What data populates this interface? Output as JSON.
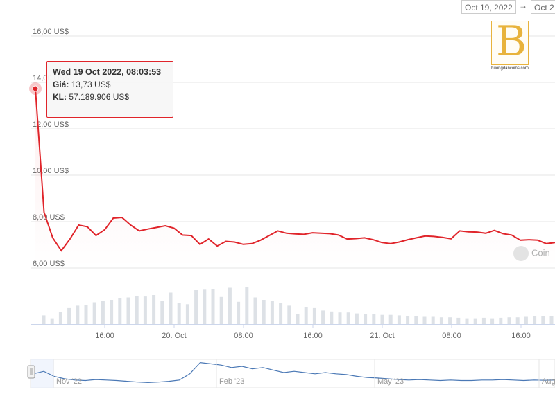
{
  "range": {
    "from": "Oct 19, 2022",
    "arrow": "→",
    "to": "Oct 2"
  },
  "logo": {
    "letter": "B",
    "site": "huongdancoins.com",
    "brand_color": "#e8b33c"
  },
  "tooltip": {
    "title": "Wed 19 Oct 2022, 08:03:53",
    "price_label": "Giá:",
    "price_value": "13,73 US$",
    "volume_label": "KL:",
    "volume_value": "57.189.906 US$"
  },
  "watermark": "Coin",
  "colors": {
    "line": "#e0242a",
    "volume": "#dde1e6",
    "navigator": "#4a78b5"
  },
  "chart_data": {
    "type": "line",
    "y_axis": {
      "ticks": [
        "6,00 US$",
        "8,00 US$",
        "10,00 US$",
        "12,00 US$",
        "14,00 US$",
        "16,00 US$"
      ],
      "tick_values": [
        6,
        8,
        10,
        12,
        14,
        16
      ],
      "ylim": [
        6,
        16
      ]
    },
    "x_axis": {
      "ticks": [
        "16:00",
        "20. Oct",
        "08:00",
        "16:00",
        "21. Oct",
        "08:00",
        "16:00"
      ]
    },
    "series": [
      {
        "values": [
          13.73,
          8.4,
          7.3,
          6.75,
          7.25,
          7.85,
          7.78,
          7.4,
          7.65,
          8.15,
          8.18,
          7.85,
          7.6,
          7.68,
          7.75,
          7.82,
          7.72,
          7.42,
          7.4,
          7.02,
          7.25,
          6.95,
          7.15,
          7.12,
          7.02,
          7.05,
          7.2,
          7.4,
          7.6,
          7.5,
          7.47,
          7.45,
          7.52,
          7.5,
          7.48,
          7.42,
          7.25,
          7.27,
          7.3,
          7.22,
          7.1,
          7.05,
          7.12,
          7.22,
          7.3,
          7.38,
          7.36,
          7.32,
          7.26,
          7.6,
          7.56,
          7.55,
          7.5,
          7.62,
          7.48,
          7.42,
          7.2,
          7.22,
          7.2,
          7.05,
          7.1
        ]
      }
    ],
    "volume": {
      "values": [
        0.18,
        0.12,
        0.25,
        0.33,
        0.38,
        0.4,
        0.45,
        0.48,
        0.5,
        0.54,
        0.55,
        0.58,
        0.57,
        0.6,
        0.48,
        0.65,
        0.43,
        0.41,
        0.7,
        0.71,
        0.72,
        0.56,
        0.75,
        0.46,
        0.76,
        0.55,
        0.5,
        0.48,
        0.44,
        0.38,
        0.2,
        0.35,
        0.33,
        0.28,
        0.26,
        0.24,
        0.24,
        0.22,
        0.21,
        0.2,
        0.19,
        0.19,
        0.18,
        0.17,
        0.17,
        0.15,
        0.15,
        0.14,
        0.14,
        0.13,
        0.12,
        0.12,
        0.13,
        0.12,
        0.13,
        0.14,
        0.14,
        0.15,
        0.16,
        0.16,
        0.17
      ]
    },
    "navigator": {
      "ticks": [
        "Nov '22",
        "Feb '23",
        "May '23",
        "Aug"
      ],
      "values": [
        0.45,
        0.55,
        0.35,
        0.25,
        0.2,
        0.18,
        0.22,
        0.2,
        0.18,
        0.15,
        0.12,
        0.1,
        0.12,
        0.15,
        0.2,
        0.45,
        0.9,
        0.85,
        0.8,
        0.7,
        0.75,
        0.65,
        0.7,
        0.6,
        0.5,
        0.55,
        0.5,
        0.45,
        0.5,
        0.45,
        0.42,
        0.35,
        0.3,
        0.28,
        0.25,
        0.22,
        0.2,
        0.22,
        0.2,
        0.18,
        0.2,
        0.18,
        0.18,
        0.2,
        0.2,
        0.22,
        0.2,
        0.18,
        0.2,
        0.19,
        0.2
      ]
    }
  }
}
